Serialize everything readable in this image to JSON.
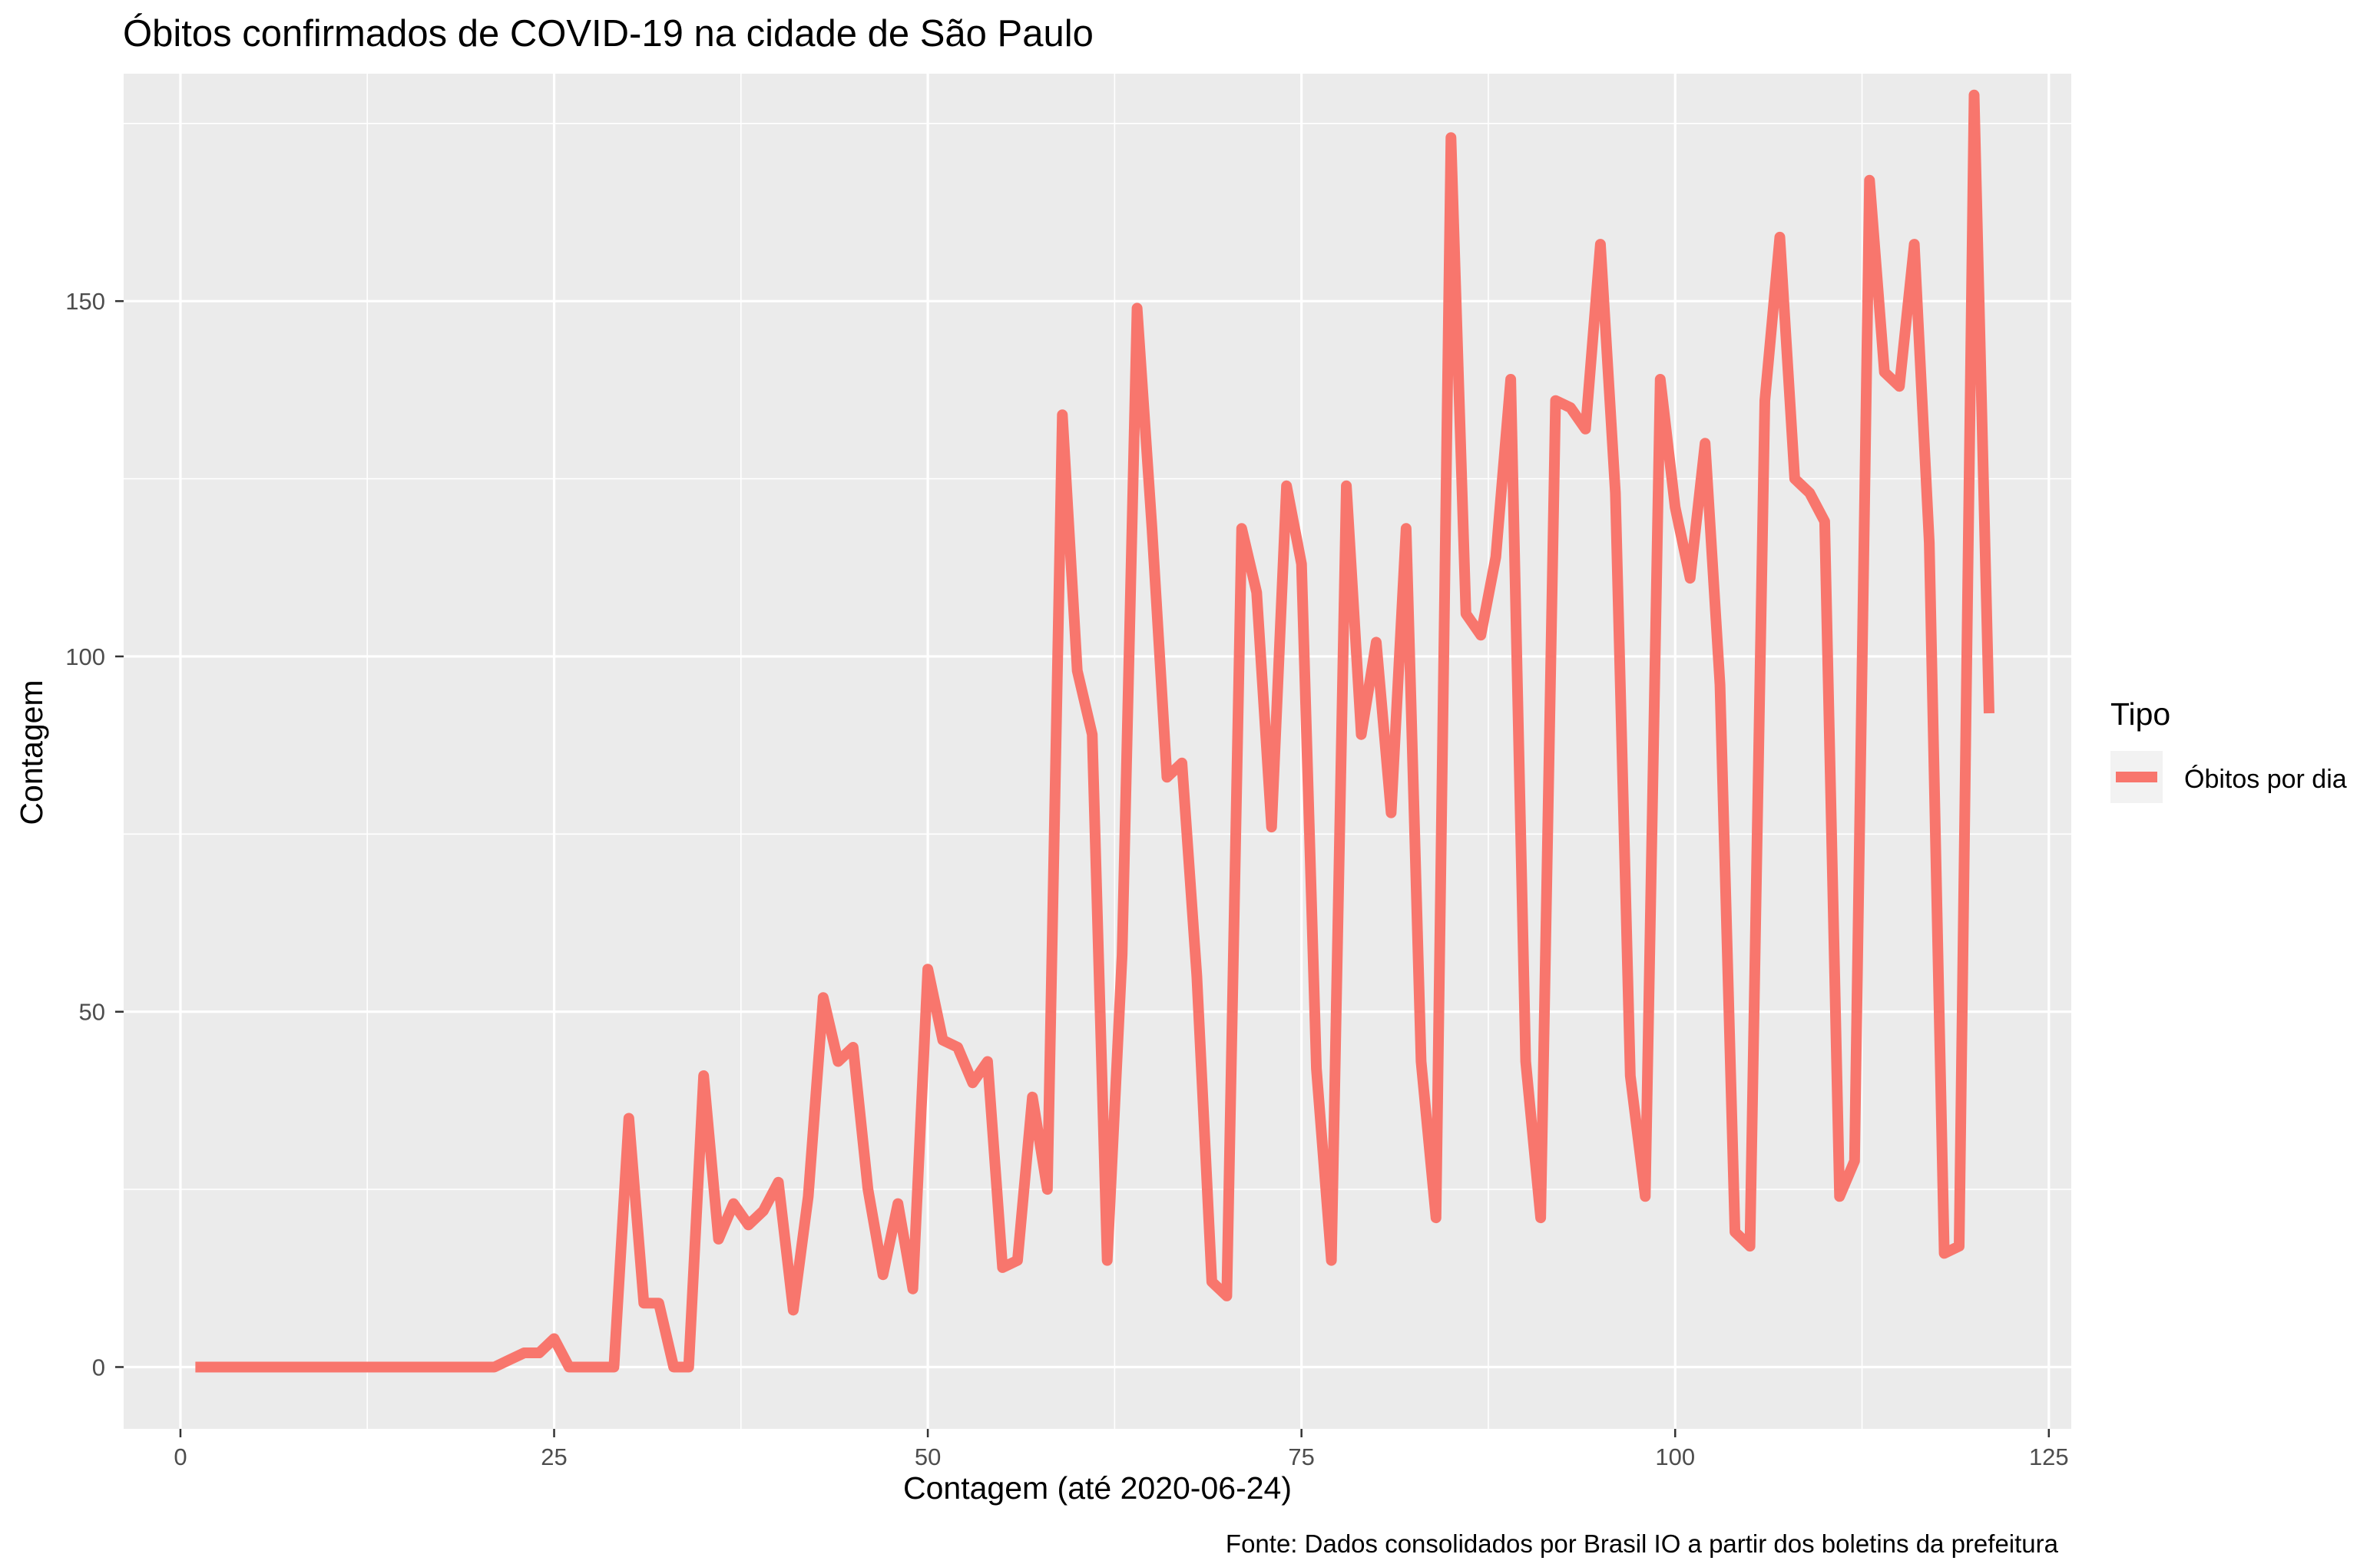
{
  "chart_data": {
    "type": "line",
    "title": "Óbitos confirmados de COVID-19 na cidade de São Paulo",
    "xlabel": "Contagem (até 2020-06-24)",
    "ylabel": "Contagem",
    "caption": "Fonte: Dados consolidados por Brasil IO a partir dos boletins da prefeitura",
    "xlim": [
      -3.8,
      126.5
    ],
    "ylim": [
      -8.7,
      182
    ],
    "x_ticks": [
      0,
      25,
      50,
      75,
      100,
      125
    ],
    "y_ticks": [
      0,
      50,
      100,
      150
    ],
    "grid": true,
    "legend": {
      "title": "Tipo",
      "position": "right",
      "entries": [
        "Óbitos por dia"
      ]
    },
    "colors": {
      "panel": "#ebebeb",
      "grid": "#ffffff",
      "series": "#f8766d",
      "axis_text": "#4d4d4d",
      "text": "#000000"
    },
    "series": [
      {
        "name": "Óbitos por dia",
        "x": [
          1,
          2,
          3,
          4,
          5,
          6,
          7,
          8,
          9,
          10,
          11,
          12,
          13,
          14,
          15,
          16,
          17,
          18,
          19,
          20,
          21,
          22,
          23,
          24,
          25,
          26,
          27,
          28,
          29,
          30,
          31,
          32,
          33,
          34,
          35,
          36,
          37,
          38,
          39,
          40,
          41,
          42,
          43,
          44,
          45,
          46,
          47,
          48,
          49,
          50,
          51,
          52,
          53,
          54,
          55,
          56,
          57,
          58,
          59,
          60,
          61,
          62,
          63,
          64,
          65,
          66,
          67,
          68,
          69,
          70,
          71,
          72,
          73,
          74,
          75,
          76,
          77,
          78,
          79,
          80,
          81,
          82,
          83,
          84,
          85,
          86,
          87,
          88,
          89,
          90,
          91,
          92,
          93,
          94,
          95,
          96,
          97,
          98,
          99,
          100,
          101,
          102,
          103,
          104,
          105,
          106,
          107,
          108,
          109,
          110,
          111,
          112,
          113,
          114,
          115,
          116,
          117,
          118,
          119,
          120,
          121
        ],
        "values": [
          0,
          0,
          0,
          0,
          0,
          0,
          0,
          0,
          0,
          0,
          0,
          0,
          0,
          0,
          0,
          0,
          0,
          0,
          0,
          0,
          0,
          1,
          2,
          2,
          4,
          0,
          0,
          0,
          0,
          35,
          9,
          9,
          0,
          0,
          41,
          18,
          23,
          20,
          22,
          26,
          8,
          24,
          52,
          43,
          45,
          25,
          13,
          23,
          11,
          56,
          46,
          45,
          40,
          43,
          14,
          15,
          38,
          25,
          134,
          98,
          89,
          15,
          58,
          149,
          118,
          83,
          85,
          55,
          12,
          10,
          118,
          109,
          76,
          124,
          113,
          42,
          15,
          124,
          89,
          102,
          78,
          118,
          43,
          21,
          173,
          106,
          103,
          114,
          139,
          43,
          21,
          136,
          135,
          132,
          158,
          123,
          41,
          24,
          139,
          121,
          111,
          130,
          96,
          19,
          17,
          136,
          159,
          125,
          123,
          119,
          24,
          29,
          167,
          140,
          138,
          158,
          116,
          16,
          17,
          179,
          92
        ]
      }
    ]
  }
}
